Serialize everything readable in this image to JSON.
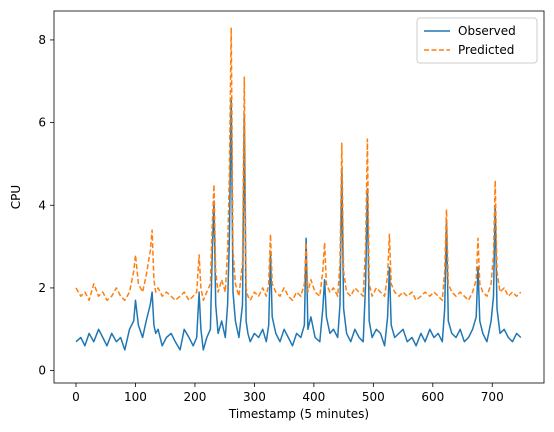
{
  "chart_data": {
    "type": "line",
    "title": "",
    "xlabel": "Timestamp (5 minutes)",
    "ylabel": "CPU",
    "xlim": [
      -37,
      787
    ],
    "ylim": [
      -0.3,
      8.7
    ],
    "xticks": [
      0,
      100,
      200,
      300,
      400,
      500,
      600,
      700
    ],
    "yticks": [
      0,
      2,
      4,
      6,
      8
    ],
    "grid": false,
    "legend": "top-right",
    "series": [
      {
        "name": "Observed",
        "color": "#1f77b4",
        "dash": "solid",
        "x": [
          0,
          8,
          15,
          22,
          30,
          38,
          45,
          52,
          60,
          68,
          75,
          82,
          90,
          97,
          100,
          105,
          112,
          118,
          125,
          128,
          131,
          134,
          138,
          145,
          152,
          160,
          167,
          175,
          182,
          190,
          197,
          203,
          207,
          210,
          214,
          220,
          226,
          229,
          232,
          235,
          239,
          245,
          251,
          255,
          258,
          261,
          264,
          268,
          274,
          280,
          283,
          286,
          289,
          293,
          300,
          307,
          314,
          320,
          324,
          327,
          330,
          336,
          343,
          350,
          357,
          364,
          371,
          378,
          384,
          387,
          390,
          395,
          402,
          410,
          415,
          418,
          421,
          427,
          433,
          440,
          444,
          447,
          450,
          455,
          462,
          469,
          476,
          483,
          487,
          490,
          493,
          498,
          505,
          512,
          519,
          524,
          527,
          530,
          536,
          543,
          550,
          557,
          565,
          572,
          580,
          587,
          595,
          602,
          609,
          616,
          620,
          623,
          626,
          632,
          639,
          646,
          653,
          660,
          667,
          673,
          676,
          679,
          684,
          691,
          698,
          702,
          705,
          708,
          713,
          720,
          727,
          734,
          741,
          748
        ],
        "y": [
          0.7,
          0.8,
          0.6,
          0.9,
          0.7,
          1.0,
          0.8,
          0.6,
          0.9,
          0.7,
          0.8,
          0.5,
          1.0,
          1.2,
          1.7,
          1.1,
          0.8,
          1.2,
          1.6,
          1.9,
          1.1,
          0.9,
          1.0,
          0.6,
          0.8,
          0.9,
          0.7,
          0.5,
          1.0,
          0.8,
          0.6,
          0.8,
          1.9,
          1.0,
          0.5,
          0.8,
          1.0,
          2.8,
          4.1,
          1.6,
          0.9,
          1.2,
          0.8,
          1.6,
          3.2,
          6.6,
          1.9,
          1.2,
          0.8,
          1.6,
          6.2,
          1.2,
          0.9,
          0.7,
          0.9,
          0.8,
          1.0,
          0.7,
          1.1,
          2.8,
          1.3,
          0.9,
          0.7,
          1.0,
          0.8,
          0.6,
          0.9,
          0.8,
          1.1,
          3.2,
          1.0,
          1.3,
          0.8,
          0.7,
          1.5,
          2.2,
          1.3,
          0.9,
          1.0,
          0.8,
          1.6,
          4.9,
          1.5,
          0.9,
          0.7,
          1.0,
          0.8,
          0.7,
          2.1,
          4.4,
          1.2,
          0.8,
          1.0,
          0.9,
          0.6,
          1.3,
          2.5,
          1.1,
          0.8,
          0.9,
          1.0,
          0.7,
          0.8,
          0.6,
          0.9,
          0.7,
          1.0,
          0.8,
          0.9,
          0.7,
          1.5,
          3.6,
          1.2,
          0.9,
          0.8,
          1.0,
          0.7,
          0.8,
          1.0,
          1.3,
          2.5,
          1.2,
          0.9,
          0.7,
          1.2,
          1.8,
          4.0,
          1.5,
          0.9,
          1.0,
          0.8,
          0.7,
          0.9,
          0.8
        ]
      },
      {
        "name": "Predicted",
        "color": "#ff7f0e",
        "dash": "dashed",
        "x": [
          0,
          8,
          15,
          22,
          30,
          38,
          45,
          52,
          60,
          68,
          75,
          82,
          90,
          97,
          100,
          105,
          112,
          118,
          125,
          128,
          131,
          134,
          138,
          145,
          152,
          160,
          167,
          175,
          182,
          190,
          197,
          203,
          207,
          210,
          214,
          220,
          226,
          229,
          232,
          235,
          239,
          245,
          251,
          255,
          258,
          261,
          264,
          268,
          274,
          280,
          283,
          286,
          289,
          293,
          300,
          307,
          314,
          320,
          324,
          327,
          330,
          336,
          343,
          350,
          357,
          364,
          371,
          378,
          384,
          387,
          390,
          395,
          402,
          410,
          415,
          418,
          421,
          427,
          433,
          440,
          444,
          447,
          450,
          455,
          462,
          469,
          476,
          483,
          487,
          490,
          493,
          498,
          505,
          512,
          519,
          524,
          527,
          530,
          536,
          543,
          550,
          557,
          565,
          572,
          580,
          587,
          595,
          602,
          609,
          616,
          620,
          623,
          626,
          632,
          639,
          646,
          653,
          660,
          667,
          673,
          676,
          679,
          684,
          691,
          698,
          702,
          705,
          708,
          713,
          720,
          727,
          734,
          741,
          748
        ],
        "y": [
          2.0,
          1.8,
          1.9,
          1.7,
          2.1,
          1.8,
          1.9,
          1.7,
          1.8,
          2.0,
          1.8,
          1.7,
          1.9,
          2.4,
          2.8,
          2.1,
          1.9,
          2.3,
          2.9,
          3.4,
          2.2,
          1.9,
          2.0,
          1.8,
          1.9,
          1.8,
          1.7,
          1.8,
          1.9,
          1.7,
          1.8,
          1.9,
          2.8,
          2.0,
          1.7,
          1.9,
          2.1,
          3.5,
          4.5,
          2.4,
          1.9,
          2.2,
          1.9,
          2.9,
          4.8,
          8.3,
          2.9,
          2.1,
          1.8,
          2.6,
          7.1,
          2.0,
          1.8,
          1.7,
          1.9,
          1.8,
          2.0,
          1.8,
          2.1,
          3.3,
          2.1,
          1.9,
          1.8,
          2.0,
          1.8,
          1.7,
          1.9,
          1.8,
          2.1,
          3.1,
          1.9,
          2.2,
          1.9,
          1.8,
          2.4,
          3.1,
          2.1,
          1.9,
          2.0,
          1.8,
          2.6,
          5.5,
          2.4,
          1.9,
          1.8,
          2.0,
          1.9,
          1.8,
          3.0,
          5.6,
          2.1,
          1.8,
          2.0,
          1.9,
          1.8,
          2.3,
          3.3,
          2.1,
          1.9,
          1.8,
          1.9,
          1.8,
          1.9,
          1.7,
          1.8,
          1.9,
          1.8,
          1.9,
          1.8,
          1.7,
          2.4,
          3.9,
          2.1,
          1.9,
          1.8,
          1.9,
          1.8,
          1.7,
          1.9,
          2.2,
          3.2,
          2.1,
          1.9,
          1.8,
          2.1,
          2.8,
          4.6,
          2.4,
          1.9,
          2.0,
          1.8,
          1.9,
          1.8,
          1.9
        ]
      }
    ]
  }
}
